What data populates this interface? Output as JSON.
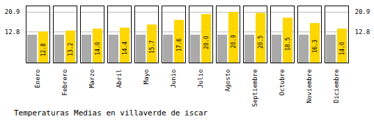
{
  "chart_data": {
    "type": "bar",
    "title": "Temperaturas Medias en villaverde de iscar",
    "categories": [
      "Enero",
      "Febrero",
      "Marzo",
      "Abril",
      "Mayo",
      "Junio",
      "Julio",
      "Agosto",
      "Septiembre",
      "Octubre",
      "Noviembre",
      "Diciembre"
    ],
    "series": [
      {
        "color": "#AAAAAA",
        "values": [
          11.5,
          11.5,
          11.5,
          11.5,
          11.5,
          11.5,
          11.5,
          11.5,
          11.5,
          11.5,
          11.5,
          11.5
        ],
        "data_labels": false
      },
      {
        "color": "#FFD700",
        "values": [
          12.8,
          13.2,
          14.0,
          14.4,
          15.7,
          17.6,
          20.0,
          20.9,
          20.5,
          18.5,
          16.3,
          14.0
        ],
        "value_labels": [
          "12.8",
          "13.2",
          "14.0",
          "14.4",
          "15.7",
          "17.6",
          "20.0",
          "20.9",
          "20.5",
          "18.5",
          "16.3",
          "14.0"
        ],
        "data_labels": true
      }
    ],
    "ylim": [
      0,
      23.5
    ],
    "yticks": [
      12.8,
      20.9
    ],
    "grid": true
  }
}
